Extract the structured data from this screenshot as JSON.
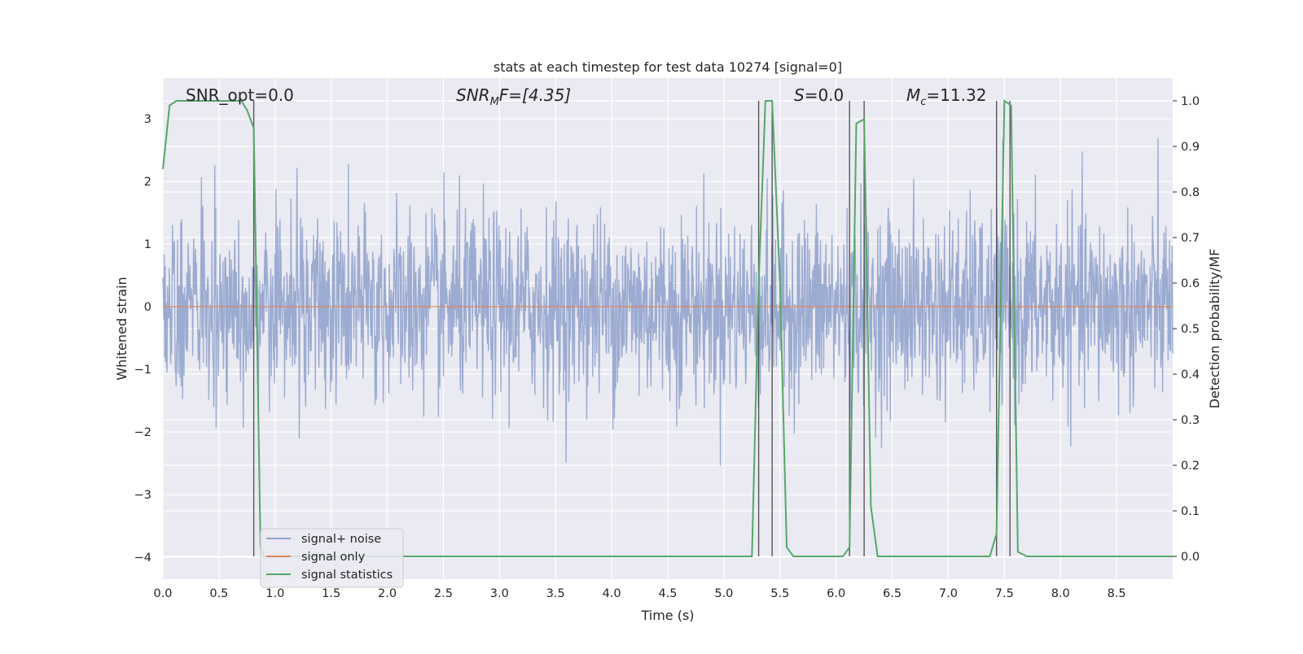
{
  "chart_data": {
    "type": "line",
    "title": "stats at each timestep for test data 10274 [signal=0]",
    "xlabel": "Time (s)",
    "ylabel": "Whitened strain",
    "y2label": "Detection probability/MF",
    "xlim": [
      0.0,
      9.0
    ],
    "ylim": [
      -4.35,
      3.65
    ],
    "y2lim": [
      -0.05,
      1.05
    ],
    "x_ticks": [
      "0.0",
      "0.5",
      "1.0",
      "1.5",
      "2.0",
      "2.5",
      "3.0",
      "3.5",
      "4.0",
      "4.5",
      "5.0",
      "5.5",
      "6.0",
      "6.5",
      "7.0",
      "7.5",
      "8.0",
      "8.5"
    ],
    "y_ticks": [
      "3",
      "2",
      "1",
      "0",
      "−1",
      "−2",
      "−3",
      "−4"
    ],
    "y2_ticks": [
      "1.0",
      "0.9",
      "0.8",
      "0.7",
      "0.6",
      "0.5",
      "0.4",
      "0.3",
      "0.2",
      "0.1",
      "0.0"
    ],
    "grid": true,
    "legend_position": "lower-left",
    "annotations": {
      "snr_opt": "SNR_opt=0.0",
      "snr_mf_base": "SNR",
      "snr_mf_sub": "M",
      "snr_mf_rest": "F=[4.35]",
      "s_italic": "S",
      "s_rest": "=0.0",
      "mc_base": "M",
      "mc_sub": "c",
      "mc_rest": "=11.32"
    },
    "series": [
      {
        "name": "signal+ noise",
        "color": "#8da0cb",
        "description_level": "whitened noise, approx std 0.75",
        "noise": {
          "std": 0.75,
          "n_points": 2200,
          "x_range": [
            0.0,
            9.0
          ]
        }
      },
      {
        "name": "signal only",
        "color": "#dd8452",
        "x": [
          0.0,
          9.0
        ],
        "y": [
          0.0,
          0.0
        ]
      },
      {
        "name": "signal statistics",
        "color": "#55a868",
        "axis": "right",
        "x": [
          0.0,
          0.06,
          0.12,
          0.2,
          0.3,
          0.5,
          0.6,
          0.7,
          0.75,
          0.81,
          0.87,
          0.9,
          1.0,
          2.0,
          3.0,
          4.0,
          5.0,
          5.25,
          5.31,
          5.37,
          5.43,
          5.5,
          5.56,
          5.62,
          5.7,
          6.0,
          6.06,
          6.12,
          6.18,
          6.25,
          6.31,
          6.37,
          6.5,
          7.0,
          7.37,
          7.43,
          7.5,
          7.56,
          7.62,
          7.7,
          8.0,
          9.0
        ],
        "y": [
          0.85,
          0.99,
          1.0,
          1.0,
          1.0,
          1.0,
          1.0,
          1.0,
          0.98,
          0.94,
          0.02,
          0.0,
          0.0,
          0.0,
          0.0,
          0.0,
          0.0,
          0.0,
          0.6,
          1.0,
          1.0,
          0.6,
          0.02,
          0.0,
          0.0,
          0.0,
          0.0,
          0.02,
          0.95,
          0.96,
          0.11,
          0.0,
          0.0,
          0.0,
          0.0,
          0.05,
          1.0,
          0.99,
          0.01,
          0.0,
          0.0,
          0.0
        ]
      }
    ],
    "vlines": [
      0.81,
      5.31,
      5.43,
      6.12,
      6.25,
      7.43,
      7.55
    ]
  }
}
